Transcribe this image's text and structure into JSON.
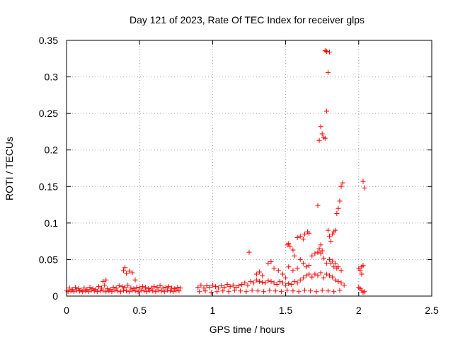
{
  "chart_data": {
    "type": "scatter",
    "title": "Day 121 of 2023, Rate Of TEC Index for receiver glps",
    "xlabel": "GPS time / hours",
    "ylabel": "ROTI / TECUs",
    "xlim": [
      0,
      2.5
    ],
    "ylim": [
      0,
      0.35
    ],
    "xticks": [
      "0",
      "0.5",
      "1",
      "1.5",
      "2",
      "2.5"
    ],
    "yticks": [
      "0",
      "0.05",
      "0.1",
      "0.15",
      "0.2",
      "0.25",
      "0.3",
      "0.35"
    ],
    "xtick_values": [
      0,
      0.5,
      1,
      1.5,
      2,
      2.5
    ],
    "ytick_values": [
      0,
      0.05,
      0.1,
      0.15,
      0.2,
      0.25,
      0.3,
      0.35
    ],
    "grid": true,
    "marker": "plus",
    "color": "#ff0000",
    "series": [
      {
        "x": [
          0.0,
          0.02,
          0.04,
          0.06,
          0.08,
          0.1,
          0.12,
          0.14,
          0.16,
          0.18,
          0.2,
          0.22,
          0.24,
          0.26,
          0.28,
          0.3,
          0.32,
          0.34,
          0.36,
          0.38,
          0.4,
          0.42,
          0.44,
          0.46,
          0.48,
          0.5,
          0.52,
          0.54,
          0.56,
          0.58,
          0.6,
          0.62,
          0.64,
          0.66,
          0.68,
          0.7,
          0.72,
          0.74,
          0.76,
          0.78,
          0.01,
          0.03,
          0.05,
          0.07,
          0.09,
          0.11,
          0.13,
          0.15,
          0.17,
          0.19,
          0.21,
          0.23,
          0.25,
          0.27,
          0.29,
          0.31,
          0.33,
          0.35,
          0.37,
          0.39,
          0.41,
          0.43,
          0.45,
          0.47,
          0.49,
          0.51,
          0.53,
          0.55,
          0.57,
          0.59,
          0.61,
          0.63,
          0.65,
          0.67,
          0.69,
          0.71,
          0.73,
          0.75,
          0.77,
          0.25,
          0.27,
          0.39,
          0.4,
          0.41,
          0.43,
          0.45,
          0.47,
          0.9,
          0.92,
          0.94,
          0.96,
          0.98,
          1.0,
          1.02,
          1.04,
          1.06,
          1.08,
          1.1,
          1.12,
          1.14,
          1.16,
          1.18,
          1.2,
          1.22,
          1.24,
          1.26,
          1.28,
          1.3,
          1.32,
          1.34,
          1.36,
          1.38,
          1.4,
          1.42,
          1.44,
          1.46,
          1.48,
          1.5,
          1.52,
          1.54,
          1.56,
          1.58,
          1.6,
          1.62,
          1.64,
          1.66,
          1.68,
          1.7,
          1.72,
          1.74,
          1.76,
          1.78,
          1.8,
          1.82,
          1.84,
          1.86,
          1.88,
          1.9,
          0.91,
          0.95,
          0.99,
          1.03,
          1.07,
          1.11,
          1.15,
          1.19,
          1.23,
          1.27,
          1.31,
          1.35,
          1.39,
          1.43,
          1.47,
          1.51,
          1.55,
          1.59,
          1.63,
          1.67,
          1.71,
          1.75,
          1.79,
          1.83,
          1.87,
          1.25,
          1.3,
          1.32,
          1.34,
          1.38,
          1.4,
          1.42,
          1.45,
          1.48,
          1.5,
          1.52,
          1.55,
          1.58,
          1.6,
          1.62,
          1.64,
          1.66,
          1.68,
          1.7,
          1.72,
          1.74,
          1.76,
          1.78,
          1.8,
          1.82,
          1.84,
          1.86,
          1.88,
          1.51,
          1.52,
          1.53,
          1.55,
          1.56,
          1.58,
          1.6,
          1.62,
          1.63,
          1.65,
          1.66,
          1.72,
          1.73,
          1.74,
          1.75,
          1.76,
          1.77,
          1.78,
          1.79,
          1.8,
          1.72,
          1.73,
          1.74,
          1.75,
          1.77,
          1.78,
          1.79,
          1.8,
          1.81,
          1.82,
          1.83,
          1.84,
          1.85,
          1.86,
          1.87,
          1.88,
          1.89,
          1.81,
          1.83,
          1.85,
          2.0,
          2.01,
          2.02,
          2.03,
          2.04,
          2.0,
          2.01,
          2.02,
          2.03,
          2.04,
          2.02,
          2.03
        ],
        "y": [
          0.008,
          0.011,
          0.009,
          0.012,
          0.01,
          0.008,
          0.011,
          0.009,
          0.012,
          0.01,
          0.009,
          0.013,
          0.011,
          0.015,
          0.01,
          0.009,
          0.012,
          0.011,
          0.014,
          0.013,
          0.012,
          0.015,
          0.011,
          0.01,
          0.012,
          0.011,
          0.013,
          0.012,
          0.01,
          0.011,
          0.013,
          0.012,
          0.014,
          0.011,
          0.012,
          0.013,
          0.011,
          0.01,
          0.012,
          0.011,
          0.006,
          0.007,
          0.006,
          0.008,
          0.007,
          0.006,
          0.007,
          0.006,
          0.008,
          0.007,
          0.006,
          0.007,
          0.008,
          0.006,
          0.007,
          0.006,
          0.008,
          0.007,
          0.006,
          0.008,
          0.007,
          0.006,
          0.008,
          0.007,
          0.006,
          0.008,
          0.007,
          0.006,
          0.008,
          0.007,
          0.006,
          0.008,
          0.007,
          0.006,
          0.008,
          0.007,
          0.006,
          0.008,
          0.007,
          0.02,
          0.022,
          0.035,
          0.039,
          0.031,
          0.034,
          0.032,
          0.022,
          0.012,
          0.015,
          0.011,
          0.014,
          0.012,
          0.015,
          0.013,
          0.011,
          0.014,
          0.012,
          0.016,
          0.013,
          0.015,
          0.012,
          0.014,
          0.016,
          0.018,
          0.015,
          0.02,
          0.018,
          0.022,
          0.02,
          0.019,
          0.018,
          0.021,
          0.02,
          0.018,
          0.016,
          0.02,
          0.018,
          0.015,
          0.017,
          0.016,
          0.02,
          0.018,
          0.022,
          0.025,
          0.028,
          0.03,
          0.026,
          0.03,
          0.028,
          0.032,
          0.025,
          0.03,
          0.028,
          0.026,
          0.022,
          0.02,
          0.018,
          0.015,
          0.006,
          0.007,
          0.005,
          0.006,
          0.007,
          0.006,
          0.008,
          0.007,
          0.006,
          0.008,
          0.007,
          0.006,
          0.008,
          0.007,
          0.006,
          0.008,
          0.007,
          0.006,
          0.008,
          0.007,
          0.006,
          0.008,
          0.007,
          0.006,
          0.008,
          0.06,
          0.03,
          0.033,
          0.028,
          0.045,
          0.047,
          0.038,
          0.035,
          0.03,
          0.025,
          0.04,
          0.035,
          0.038,
          0.05,
          0.045,
          0.04,
          0.042,
          0.055,
          0.058,
          0.06,
          0.058,
          0.052,
          0.045,
          0.05,
          0.048,
          0.045,
          0.04,
          0.035,
          0.07,
          0.072,
          0.068,
          0.063,
          0.055,
          0.08,
          0.082,
          0.078,
          0.085,
          0.088,
          0.086,
          0.124,
          0.213,
          0.232,
          0.222,
          0.217,
          0.216,
          0.253,
          0.306,
          0.334,
          0.06,
          0.065,
          0.07,
          0.062,
          0.336,
          0.335,
          0.09,
          0.082,
          0.075,
          0.085,
          0.088,
          0.09,
          0.113,
          0.12,
          0.13,
          0.15,
          0.155,
          0.045,
          0.04,
          0.038,
          0.038,
          0.035,
          0.03,
          0.157,
          0.148,
          0.012,
          0.01,
          0.008,
          0.005,
          0.006,
          0.04,
          0.042
        ]
      }
    ]
  }
}
